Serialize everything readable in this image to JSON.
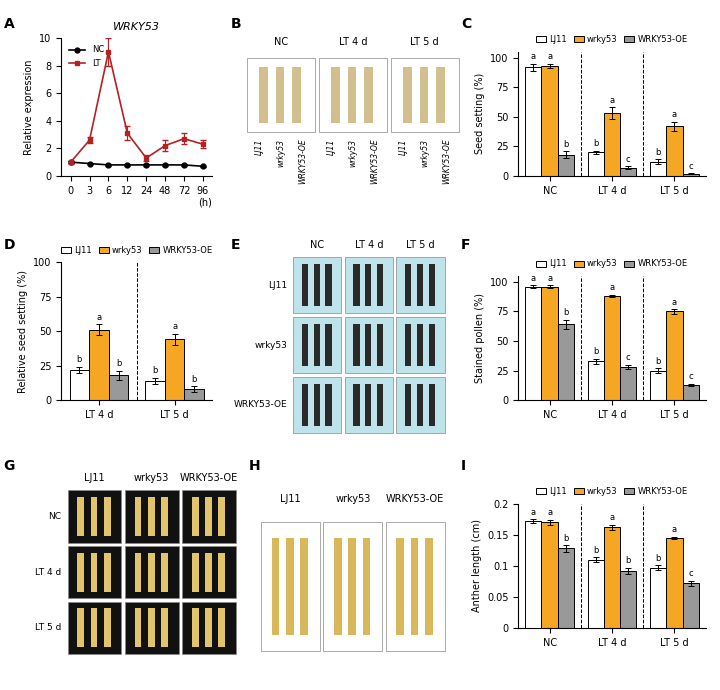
{
  "chart_data": [
    {
      "panel": "A",
      "type": "line",
      "title": "WRKY53",
      "y_label": "Relative expression",
      "x_label": "(h)",
      "categories": [
        "0",
        "3",
        "6",
        "12",
        "24",
        "48",
        "72",
        "96"
      ],
      "ylim": [
        0,
        10
      ],
      "yticks": [
        0,
        2,
        4,
        6,
        8,
        10
      ],
      "legend": "upper left",
      "series": [
        {
          "name": "NC",
          "color": "#000000",
          "marker": "o",
          "values": [
            1.0,
            0.9,
            0.8,
            0.8,
            0.8,
            0.8,
            0.8,
            0.7
          ],
          "errors": [
            0.05,
            0.05,
            0.05,
            0.05,
            0.05,
            0.05,
            0.05,
            0.05
          ]
        },
        {
          "name": "LT",
          "color": "#b22222",
          "marker": "s",
          "values": [
            1.0,
            2.6,
            9.0,
            3.1,
            1.3,
            2.2,
            2.7,
            2.3
          ],
          "errors": [
            0.1,
            0.2,
            1.0,
            0.5,
            0.2,
            0.4,
            0.4,
            0.3
          ]
        }
      ]
    },
    {
      "panel": "B",
      "type": "image",
      "columns": [
        "NC",
        "LT 4 d",
        "LT 5 d"
      ],
      "labels": [
        "LJ11",
        "wrky53",
        "WRKY53-OE"
      ]
    },
    {
      "panel": "C",
      "type": "bar",
      "y_label": "Seed setting (%)",
      "categories": [
        "NC",
        "LT 4 d",
        "LT 5 d"
      ],
      "ylim": [
        0,
        105
      ],
      "yticks": [
        0,
        25,
        50,
        75,
        100
      ],
      "legend": "top",
      "series": [
        {
          "name": "LJ11",
          "color": "#ffffff",
          "values": [
            92,
            20,
            12
          ],
          "errors": [
            3,
            1.5,
            2
          ],
          "letters": [
            "a",
            "b",
            "b"
          ]
        },
        {
          "name": "wrky53",
          "color": "#f5a623",
          "values": [
            93,
            53,
            42
          ],
          "errors": [
            2,
            5,
            4
          ],
          "letters": [
            "a",
            "a",
            "a"
          ]
        },
        {
          "name": "WRKY53-OE",
          "color": "#999999",
          "values": [
            18,
            7,
            2
          ],
          "errors": [
            3,
            1,
            0.5
          ],
          "letters": [
            "b",
            "c",
            "c"
          ]
        }
      ]
    },
    {
      "panel": "D",
      "type": "bar",
      "y_label": "Relative seed setting (%)",
      "categories": [
        "LT 4 d",
        "LT 5 d"
      ],
      "ylim": [
        0,
        100
      ],
      "yticks": [
        0,
        25,
        50,
        75,
        100
      ],
      "legend": "top",
      "series": [
        {
          "name": "LJ11",
          "color": "#ffffff",
          "values": [
            22,
            14
          ],
          "errors": [
            2,
            2
          ],
          "letters": [
            "b",
            "b"
          ]
        },
        {
          "name": "wrky53",
          "color": "#f5a623",
          "values": [
            51,
            44
          ],
          "errors": [
            4,
            4
          ],
          "letters": [
            "a",
            "a"
          ]
        },
        {
          "name": "WRKY53-OE",
          "color": "#999999",
          "values": [
            18,
            8
          ],
          "errors": [
            3,
            2
          ],
          "letters": [
            "b",
            "b"
          ]
        }
      ]
    },
    {
      "panel": "E",
      "type": "image",
      "columns": [
        "NC",
        "LT 4 d",
        "LT 5 d"
      ],
      "rows": [
        "LJ11",
        "wrky53",
        "WRKY53-OE"
      ]
    },
    {
      "panel": "F",
      "type": "bar",
      "y_label": "Stained pollen (%)",
      "categories": [
        "NC",
        "LT 4 d",
        "LT 5 d"
      ],
      "ylim": [
        0,
        105
      ],
      "yticks": [
        0,
        25,
        50,
        75,
        100
      ],
      "legend": "top",
      "series": [
        {
          "name": "LJ11",
          "color": "#ffffff",
          "values": [
            96,
            33,
            25
          ],
          "errors": [
            1,
            2,
            2
          ],
          "letters": [
            "a",
            "b",
            "b"
          ]
        },
        {
          "name": "wrky53",
          "color": "#f5a623",
          "values": [
            96,
            88,
            75
          ],
          "errors": [
            1,
            1,
            2
          ],
          "letters": [
            "a",
            "a",
            "a"
          ]
        },
        {
          "name": "WRKY53-OE",
          "color": "#999999",
          "values": [
            64,
            28,
            13
          ],
          "errors": [
            4,
            2,
            1
          ],
          "letters": [
            "b",
            "c",
            "c"
          ]
        }
      ]
    },
    {
      "panel": "G",
      "type": "image",
      "columns": [
        "LJ11",
        "wrky53",
        "WRKY53-OE"
      ],
      "rows": [
        "NC",
        "LT 4 d",
        "LT 5 d"
      ]
    },
    {
      "panel": "H",
      "type": "image",
      "columns": [
        "LJ11",
        "wrky53",
        "WRKY53-OE"
      ]
    },
    {
      "panel": "I",
      "type": "bar",
      "y_label": "Anther length (cm)",
      "categories": [
        "NC",
        "LT 4 d",
        "LT 5 d"
      ],
      "ylim": [
        0,
        0.2
      ],
      "yticks": [
        0,
        0.05,
        0.1,
        0.15,
        0.2
      ],
      "legend": "top",
      "series": [
        {
          "name": "LJ11",
          "color": "#ffffff",
          "values": [
            0.172,
            0.11,
            0.097
          ],
          "errors": [
            0.003,
            0.004,
            0.004
          ],
          "letters": [
            "a",
            "b",
            "b"
          ]
        },
        {
          "name": "wrky53",
          "color": "#f5a623",
          "values": [
            0.17,
            0.162,
            0.145
          ],
          "errors": [
            0.004,
            0.004,
            0.002
          ],
          "letters": [
            "a",
            "a",
            "a"
          ]
        },
        {
          "name": "WRKY53-OE",
          "color": "#999999",
          "values": [
            0.128,
            0.092,
            0.072
          ],
          "errors": [
            0.005,
            0.005,
            0.004
          ],
          "letters": [
            "b",
            "b",
            "c"
          ]
        }
      ]
    }
  ]
}
